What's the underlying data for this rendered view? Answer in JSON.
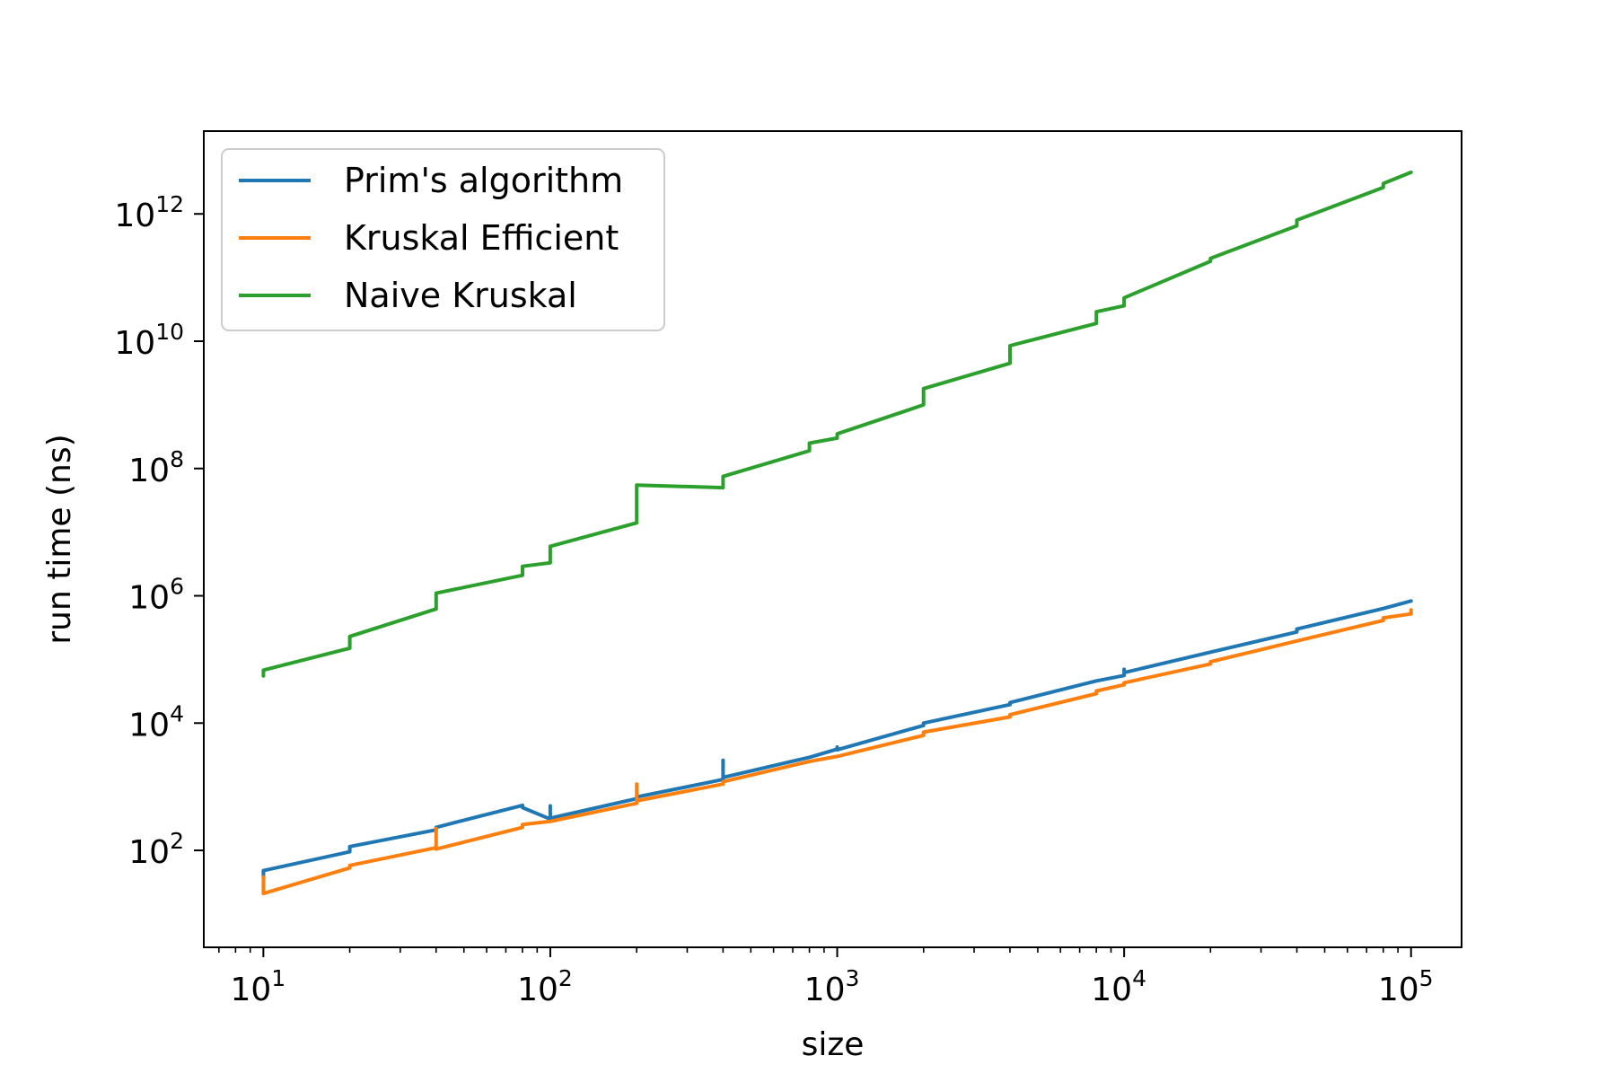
{
  "chart_data": {
    "type": "line",
    "title": "",
    "xlabel": "size",
    "ylabel": "run time (ns)",
    "xscale": "log",
    "yscale": "log",
    "xlim": [
      6.2,
      150000
    ],
    "ylim": [
      3,
      20000000000000.0
    ],
    "grid": false,
    "legend_position": "top-left",
    "x_ticks": [
      {
        "base": "10",
        "exp": "1",
        "value": 10
      },
      {
        "base": "10",
        "exp": "2",
        "value": 100
      },
      {
        "base": "10",
        "exp": "3",
        "value": 1000
      },
      {
        "base": "10",
        "exp": "4",
        "value": 10000
      },
      {
        "base": "10",
        "exp": "5",
        "value": 100000
      }
    ],
    "y_ticks": [
      {
        "base": "10",
        "exp": "2",
        "value": 100
      },
      {
        "base": "10",
        "exp": "4",
        "value": 10000
      },
      {
        "base": "10",
        "exp": "6",
        "value": 1000000
      },
      {
        "base": "10",
        "exp": "8",
        "value": 100000000
      },
      {
        "base": "10",
        "exp": "10",
        "value": 10000000000
      },
      {
        "base": "10",
        "exp": "12",
        "value": 1000000000000
      }
    ],
    "series": [
      {
        "name": "Prim's algorithm",
        "color": "#1f77b4",
        "points": [
          [
            10,
            38
          ],
          [
            10,
            48
          ],
          [
            20,
            95
          ],
          [
            20,
            115
          ],
          [
            40,
            210
          ],
          [
            40,
            230
          ],
          [
            80,
            510
          ],
          [
            80,
            470
          ],
          [
            100,
            310
          ],
          [
            100,
            500
          ],
          [
            100,
            320
          ],
          [
            200,
            650
          ],
          [
            200,
            690
          ],
          [
            400,
            1300
          ],
          [
            400,
            2600
          ],
          [
            400,
            1400
          ],
          [
            800,
            2900
          ],
          [
            1000,
            3900
          ],
          [
            1000,
            4200
          ],
          [
            1000,
            3800
          ],
          [
            2000,
            9200
          ],
          [
            2000,
            10000
          ],
          [
            4000,
            19500
          ],
          [
            4000,
            21000
          ],
          [
            8000,
            46000
          ],
          [
            10000,
            56000
          ],
          [
            10000,
            70000
          ],
          [
            10000,
            62000
          ],
          [
            20000,
            130000
          ],
          [
            40000,
            270000
          ],
          [
            40000,
            300000
          ],
          [
            80000,
            630000
          ],
          [
            100000,
            830000
          ]
        ]
      },
      {
        "name": "Kruskal Efficient",
        "color": "#ff7f0e",
        "points": [
          [
            10,
            38
          ],
          [
            10,
            21
          ],
          [
            20,
            53
          ],
          [
            20,
            58
          ],
          [
            40,
            110
          ],
          [
            40,
            220
          ],
          [
            40,
            105
          ],
          [
            80,
            230
          ],
          [
            80,
            255
          ],
          [
            100,
            285
          ],
          [
            200,
            550
          ],
          [
            200,
            1100
          ],
          [
            200,
            600
          ],
          [
            400,
            1100
          ],
          [
            400,
            1200
          ],
          [
            800,
            2500
          ],
          [
            1000,
            3000
          ],
          [
            2000,
            6400
          ],
          [
            2000,
            7200
          ],
          [
            4000,
            12500
          ],
          [
            4000,
            13500
          ],
          [
            8000,
            29000
          ],
          [
            8000,
            32000
          ],
          [
            10000,
            40000
          ],
          [
            10000,
            43000
          ],
          [
            20000,
            85000
          ],
          [
            20000,
            92000
          ],
          [
            40000,
            195000
          ],
          [
            80000,
            410000
          ],
          [
            80000,
            450000
          ],
          [
            100000,
            520000
          ],
          [
            100000,
            600000
          ]
        ]
      },
      {
        "name": "Naive Kruskal",
        "color": "#2ca02c",
        "points": [
          [
            10,
            55000
          ],
          [
            10,
            68000
          ],
          [
            20,
            150000
          ],
          [
            20,
            230000
          ],
          [
            40,
            620000
          ],
          [
            40,
            1100000
          ],
          [
            80,
            2100000
          ],
          [
            80,
            2900000
          ],
          [
            100,
            3300000
          ],
          [
            100,
            6000000
          ],
          [
            200,
            14000000
          ],
          [
            200,
            55000000
          ],
          [
            400,
            50000000
          ],
          [
            400,
            75000000
          ],
          [
            800,
            190000000
          ],
          [
            800,
            250000000
          ],
          [
            1000,
            300000000
          ],
          [
            1000,
            350000000
          ],
          [
            2000,
            1000000000
          ],
          [
            2000,
            1800000000
          ],
          [
            4000,
            4500000000
          ],
          [
            4000,
            8500000000
          ],
          [
            8000,
            19000000000
          ],
          [
            8000,
            29000000000
          ],
          [
            10000,
            36000000000
          ],
          [
            10000,
            48000000000
          ],
          [
            20000,
            180000000000
          ],
          [
            20000,
            200000000000
          ],
          [
            40000,
            650000000000
          ],
          [
            40000,
            800000000000
          ],
          [
            80000,
            2600000000000
          ],
          [
            80000,
            3000000000000
          ],
          [
            100000,
            4500000000000
          ]
        ]
      }
    ]
  }
}
